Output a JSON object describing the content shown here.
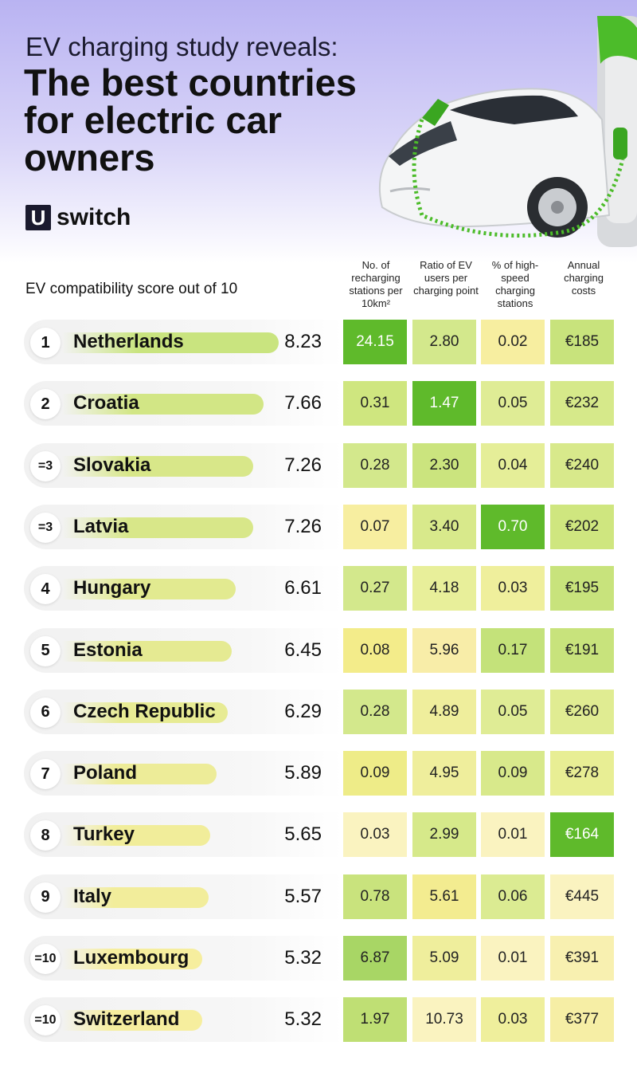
{
  "header": {
    "subtitle": "EV charging study reveals:",
    "title": "The best countries for electric car owners",
    "brand_mark": "U",
    "brand_word": "switch"
  },
  "chart_data": {
    "type": "table",
    "score_label": "EV compatibility score out of 10",
    "columns": [
      "No. of recharging stations per 10km²",
      "Ratio of EV users per charging point",
      "% of high-speed charging stations",
      "Annual charging costs"
    ],
    "rows": [
      {
        "rank": "1",
        "country": "Netherlands",
        "score": "8.23",
        "values": [
          "24.15",
          "2.80",
          "0.02",
          "€185"
        ],
        "colors": [
          "#5fba2b",
          "#d3e88c",
          "#f7eea0",
          "#c8e37c"
        ]
      },
      {
        "rank": "2",
        "country": "Croatia",
        "score": "7.66",
        "values": [
          "0.31",
          "1.47",
          "0.05",
          "€232"
        ],
        "colors": [
          "#cfe67f",
          "#5fba2b",
          "#dfec95",
          "#d6e98a"
        ]
      },
      {
        "rank": "=3",
        "country": "Slovakia",
        "score": "7.26",
        "values": [
          "0.28",
          "2.30",
          "0.04",
          "€240"
        ],
        "colors": [
          "#d3e88c",
          "#cbe47e",
          "#e5ee98",
          "#d8e98b"
        ]
      },
      {
        "rank": "=3",
        "country": "Latvia",
        "score": "7.26",
        "values": [
          "0.07",
          "3.40",
          "0.70",
          "€202"
        ],
        "colors": [
          "#f7eea0",
          "#d8e98b",
          "#5fba2b",
          "#cfe67f"
        ]
      },
      {
        "rank": "4",
        "country": "Hungary",
        "score": "6.61",
        "values": [
          "0.27",
          "4.18",
          "0.03",
          "€195"
        ],
        "colors": [
          "#d3e88c",
          "#e8ef9a",
          "#efef9c",
          "#c8e37c"
        ]
      },
      {
        "rank": "5",
        "country": "Estonia",
        "score": "6.45",
        "values": [
          "0.08",
          "5.96",
          "0.17",
          "€191"
        ],
        "colors": [
          "#f3ec8a",
          "#f8eda8",
          "#c4e27a",
          "#c8e37c"
        ]
      },
      {
        "rank": "6",
        "country": "Czech Republic",
        "score": "6.29",
        "values": [
          "0.28",
          "4.89",
          "0.05",
          "€260"
        ],
        "colors": [
          "#d3e88c",
          "#efee9c",
          "#dfec95",
          "#e0ec92"
        ]
      },
      {
        "rank": "7",
        "country": "Poland",
        "score": "5.89",
        "values": [
          "0.09",
          "4.95",
          "0.09",
          "€278"
        ],
        "colors": [
          "#eeec88",
          "#efee9c",
          "#d8e98b",
          "#e8ee94"
        ]
      },
      {
        "rank": "8",
        "country": "Turkey",
        "score": "5.65",
        "values": [
          "0.03",
          "2.99",
          "0.01",
          "€164"
        ],
        "colors": [
          "#faf3c0",
          "#d6e98a",
          "#faf3c0",
          "#5fba2b"
        ]
      },
      {
        "rank": "9",
        "country": "Italy",
        "score": "5.57",
        "values": [
          "0.78",
          "5.61",
          "0.06",
          "€445"
        ],
        "colors": [
          "#c9e37d",
          "#f3ec90",
          "#dbeb92",
          "#faf3c0"
        ]
      },
      {
        "rank": "=10",
        "country": "Luxembourg",
        "score": "5.32",
        "values": [
          "6.87",
          "5.09",
          "0.01",
          "€391"
        ],
        "colors": [
          "#a8d665",
          "#efee9c",
          "#faf3c0",
          "#f8f0b0"
        ]
      },
      {
        "rank": "=10",
        "country": "Switzerland",
        "score": "5.32",
        "values": [
          "1.97",
          "10.73",
          "0.03",
          "€377"
        ],
        "colors": [
          "#bfdf74",
          "#faf3c0",
          "#efef9c",
          "#f6eea5"
        ]
      }
    ],
    "score_range": [
      0,
      10
    ],
    "score_bar_colors": {
      "high": "#c9e47f",
      "low": "#f6ee9e"
    }
  }
}
